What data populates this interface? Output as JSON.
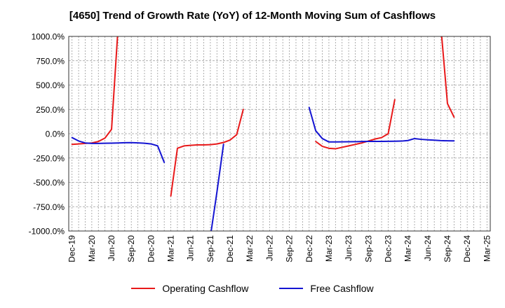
{
  "chart_data": {
    "type": "line",
    "title": "[4650]  Trend of Growth Rate (YoY) of 12-Month Moving Sum of Cashflows",
    "xlabel": "",
    "ylabel": "",
    "ylim": [
      -1000,
      1000
    ],
    "ytick_values": [
      1000,
      750,
      500,
      250,
      0,
      -250,
      -500,
      -750,
      -1000
    ],
    "ytick_labels": [
      "1000.0%",
      "750.0%",
      "500.0%",
      "250.0%",
      "0.0%",
      "-250.0%",
      "-500.0%",
      "-750.0%",
      "-1000.0%"
    ],
    "x": [
      "Dec-19",
      "Jan-20",
      "Feb-20",
      "Mar-20",
      "Apr-20",
      "May-20",
      "Jun-20",
      "Jul-20",
      "Aug-20",
      "Sep-20",
      "Oct-20",
      "Nov-20",
      "Dec-20",
      "Jan-21",
      "Feb-21",
      "Mar-21",
      "Apr-21",
      "May-21",
      "Jun-21",
      "Jul-21",
      "Aug-21",
      "Sep-21",
      "Oct-21",
      "Nov-21",
      "Dec-21",
      "Jan-22",
      "Feb-22",
      "Mar-22",
      "Apr-22",
      "May-22",
      "Jun-22",
      "Jul-22",
      "Aug-22",
      "Sep-22",
      "Oct-22",
      "Nov-22",
      "Dec-22",
      "Jan-23",
      "Feb-23",
      "Mar-23",
      "Apr-23",
      "May-23",
      "Jun-23",
      "Jul-23",
      "Aug-23",
      "Sep-23",
      "Oct-23",
      "Nov-23",
      "Dec-23",
      "Jan-24",
      "Feb-24",
      "Mar-24",
      "Apr-24",
      "May-24",
      "Jun-24",
      "Jul-24",
      "Aug-24",
      "Sep-24",
      "Oct-24",
      "Nov-24",
      "Dec-24",
      "Jan-25",
      "Feb-25",
      "Mar-25"
    ],
    "xtick_labels": [
      "Dec-19",
      "Mar-20",
      "Jun-20",
      "Sep-20",
      "Dec-20",
      "Mar-21",
      "Jun-21",
      "Sep-21",
      "Dec-21",
      "Mar-22",
      "Jun-22",
      "Sep-22",
      "Dec-22",
      "Mar-23",
      "Jun-23",
      "Sep-23",
      "Dec-23",
      "Mar-24",
      "Jun-24",
      "Sep-24",
      "Dec-24",
      "Mar-25"
    ],
    "grid": true,
    "legend_position": "bottom",
    "series": [
      {
        "name": "Operating Cashflow",
        "color": "#e8191a",
        "values": [
          -110,
          -105,
          -100,
          -95,
          -80,
          -45,
          45,
          1100,
          null,
          null,
          null,
          null,
          null,
          null,
          null,
          -640,
          -150,
          -125,
          -120,
          -115,
          -115,
          -112,
          -105,
          -90,
          -65,
          -10,
          250,
          null,
          null,
          null,
          null,
          null,
          null,
          null,
          null,
          null,
          null,
          -80,
          -130,
          -150,
          -155,
          -140,
          -125,
          -110,
          -95,
          -75,
          -55,
          -40,
          0,
          350,
          null,
          null,
          null,
          null,
          null,
          null,
          1100,
          310,
          170,
          null,
          null,
          null,
          null,
          null
        ]
      },
      {
        "name": "Free Cashflow",
        "color": "#1414d2",
        "values": [
          -40,
          -75,
          -95,
          -100,
          -100,
          -98,
          -97,
          -95,
          -93,
          -92,
          -94,
          -98,
          -105,
          -125,
          -295,
          null,
          null,
          null,
          null,
          null,
          null,
          -1060,
          -600,
          -110,
          null,
          null,
          null,
          null,
          null,
          null,
          null,
          null,
          null,
          null,
          null,
          null,
          270,
          30,
          -50,
          -85,
          -85,
          -84,
          -83,
          -82,
          -80,
          -79,
          -79,
          -79,
          -78,
          -77,
          -76,
          -70,
          -50,
          -58,
          -63,
          -67,
          -71,
          -73,
          -74,
          null,
          null,
          null,
          null,
          null
        ]
      }
    ]
  }
}
